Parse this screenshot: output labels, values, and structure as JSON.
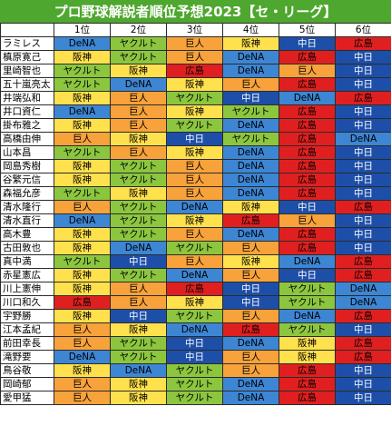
{
  "title": "プロ野球解説者順位予想2023【セ・リーグ】",
  "headers": [
    "",
    "1位",
    "2位",
    "3位",
    "4位",
    "5位",
    "6位"
  ],
  "team_colors": {
    "DeNA": {
      "bg": "#3d86d4",
      "fg": "#000000"
    },
    "ヤクルト": {
      "bg": "#8cc63f",
      "fg": "#000000"
    },
    "巨人": {
      "bg": "#f7a23b",
      "fg": "#000000"
    },
    "阪神": {
      "bg": "#ffe14d",
      "fg": "#000000"
    },
    "中日": {
      "bg": "#1e4fa8",
      "fg": "#ffffff"
    },
    "広島": {
      "bg": "#e02020",
      "fg": "#000000"
    }
  },
  "rows": [
    {
      "name": "ラミレス",
      "ranks": [
        "DeNA",
        "ヤクルト",
        "巨人",
        "阪神",
        "中日",
        "広島"
      ]
    },
    {
      "name": "槙原寛己",
      "ranks": [
        "阪神",
        "ヤクルト",
        "巨人",
        "DeNA",
        "広島",
        "中日"
      ]
    },
    {
      "name": "里崎智也",
      "ranks": [
        "ヤクルト",
        "阪神",
        "広島",
        "DeNA",
        "巨人",
        "中日"
      ]
    },
    {
      "name": "五十嵐亮太",
      "ranks": [
        "ヤクルト",
        "DeNA",
        "阪神",
        "巨人",
        "広島",
        "中日"
      ]
    },
    {
      "name": "井端弘和",
      "ranks": [
        "阪神",
        "巨人",
        "ヤクルト",
        "中日",
        "DeNA",
        "広島"
      ]
    },
    {
      "name": "井口資仁",
      "ranks": [
        "DeNA",
        "巨人",
        "阪神",
        "ヤクルト",
        "広島",
        "中日"
      ]
    },
    {
      "name": "掛布雅之",
      "ranks": [
        "阪神",
        "巨人",
        "ヤクルト",
        "DeNA",
        "広島",
        "中日"
      ]
    },
    {
      "name": "高橋由伸",
      "ranks": [
        "巨人",
        "阪神",
        "中日",
        "ヤクルト",
        "広島",
        "DeNA"
      ]
    },
    {
      "name": "山本昌",
      "ranks": [
        "ヤクルト",
        "巨人",
        "阪神",
        "DeNA",
        "広島",
        "中日"
      ]
    },
    {
      "name": "岡島秀樹",
      "ranks": [
        "阪神",
        "ヤクルト",
        "巨人",
        "DeNA",
        "広島",
        "中日"
      ]
    },
    {
      "name": "谷繁元信",
      "ranks": [
        "阪神",
        "ヤクルト",
        "巨人",
        "DeNA",
        "広島",
        "中日"
      ]
    },
    {
      "name": "森福允彦",
      "ranks": [
        "ヤクルト",
        "阪神",
        "巨人",
        "DeNA",
        "広島",
        "中日"
      ]
    },
    {
      "name": "清水隆行",
      "ranks": [
        "巨人",
        "ヤクルト",
        "DeNA",
        "阪神",
        "中日",
        "広島"
      ]
    },
    {
      "name": "清水直行",
      "ranks": [
        "DeNA",
        "ヤクルト",
        "阪神",
        "広島",
        "巨人",
        "中日"
      ]
    },
    {
      "name": "高木豊",
      "ranks": [
        "阪神",
        "ヤクルト",
        "巨人",
        "DeNA",
        "広島",
        "中日"
      ]
    },
    {
      "name": "古田敦也",
      "ranks": [
        "阪神",
        "DeNA",
        "ヤクルト",
        "巨人",
        "広島",
        "中日"
      ]
    },
    {
      "name": "真中満",
      "ranks": [
        "ヤクルト",
        "中日",
        "巨人",
        "阪神",
        "DeNA",
        "広島"
      ]
    },
    {
      "name": "赤星憲広",
      "ranks": [
        "阪神",
        "ヤクルト",
        "DeNA",
        "巨人",
        "中日",
        "広島"
      ]
    },
    {
      "name": "川上憲伸",
      "ranks": [
        "阪神",
        "巨人",
        "広島",
        "中日",
        "ヤクルト",
        "DeNA"
      ]
    },
    {
      "name": "川口和久",
      "ranks": [
        "広島",
        "巨人",
        "阪神",
        "中日",
        "ヤクルト",
        "DeNA"
      ]
    },
    {
      "name": "宇野勝",
      "ranks": [
        "阪神",
        "中日",
        "ヤクルト",
        "巨人",
        "DeNA",
        "広島"
      ]
    },
    {
      "name": "江本孟紀",
      "ranks": [
        "巨人",
        "阪神",
        "DeNA",
        "広島",
        "ヤクルト",
        "中日"
      ]
    },
    {
      "name": "前田幸長",
      "ranks": [
        "巨人",
        "ヤクルト",
        "中日",
        "DeNA",
        "阪神",
        "広島"
      ]
    },
    {
      "name": "滝野要",
      "ranks": [
        "DeNA",
        "ヤクルト",
        "中日",
        "巨人",
        "阪神",
        "広島"
      ]
    },
    {
      "name": "鳥谷敬",
      "ranks": [
        "阪神",
        "DeNA",
        "ヤクルト",
        "巨人",
        "広島",
        "中日"
      ]
    },
    {
      "name": "岡崎郁",
      "ranks": [
        "巨人",
        "阪神",
        "ヤクルト",
        "DeNA",
        "広島",
        "中日"
      ]
    },
    {
      "name": "愛甲猛",
      "ranks": [
        "巨人",
        "阪神",
        "ヤクルト",
        "DeNA",
        "広島",
        "中日"
      ]
    }
  ]
}
